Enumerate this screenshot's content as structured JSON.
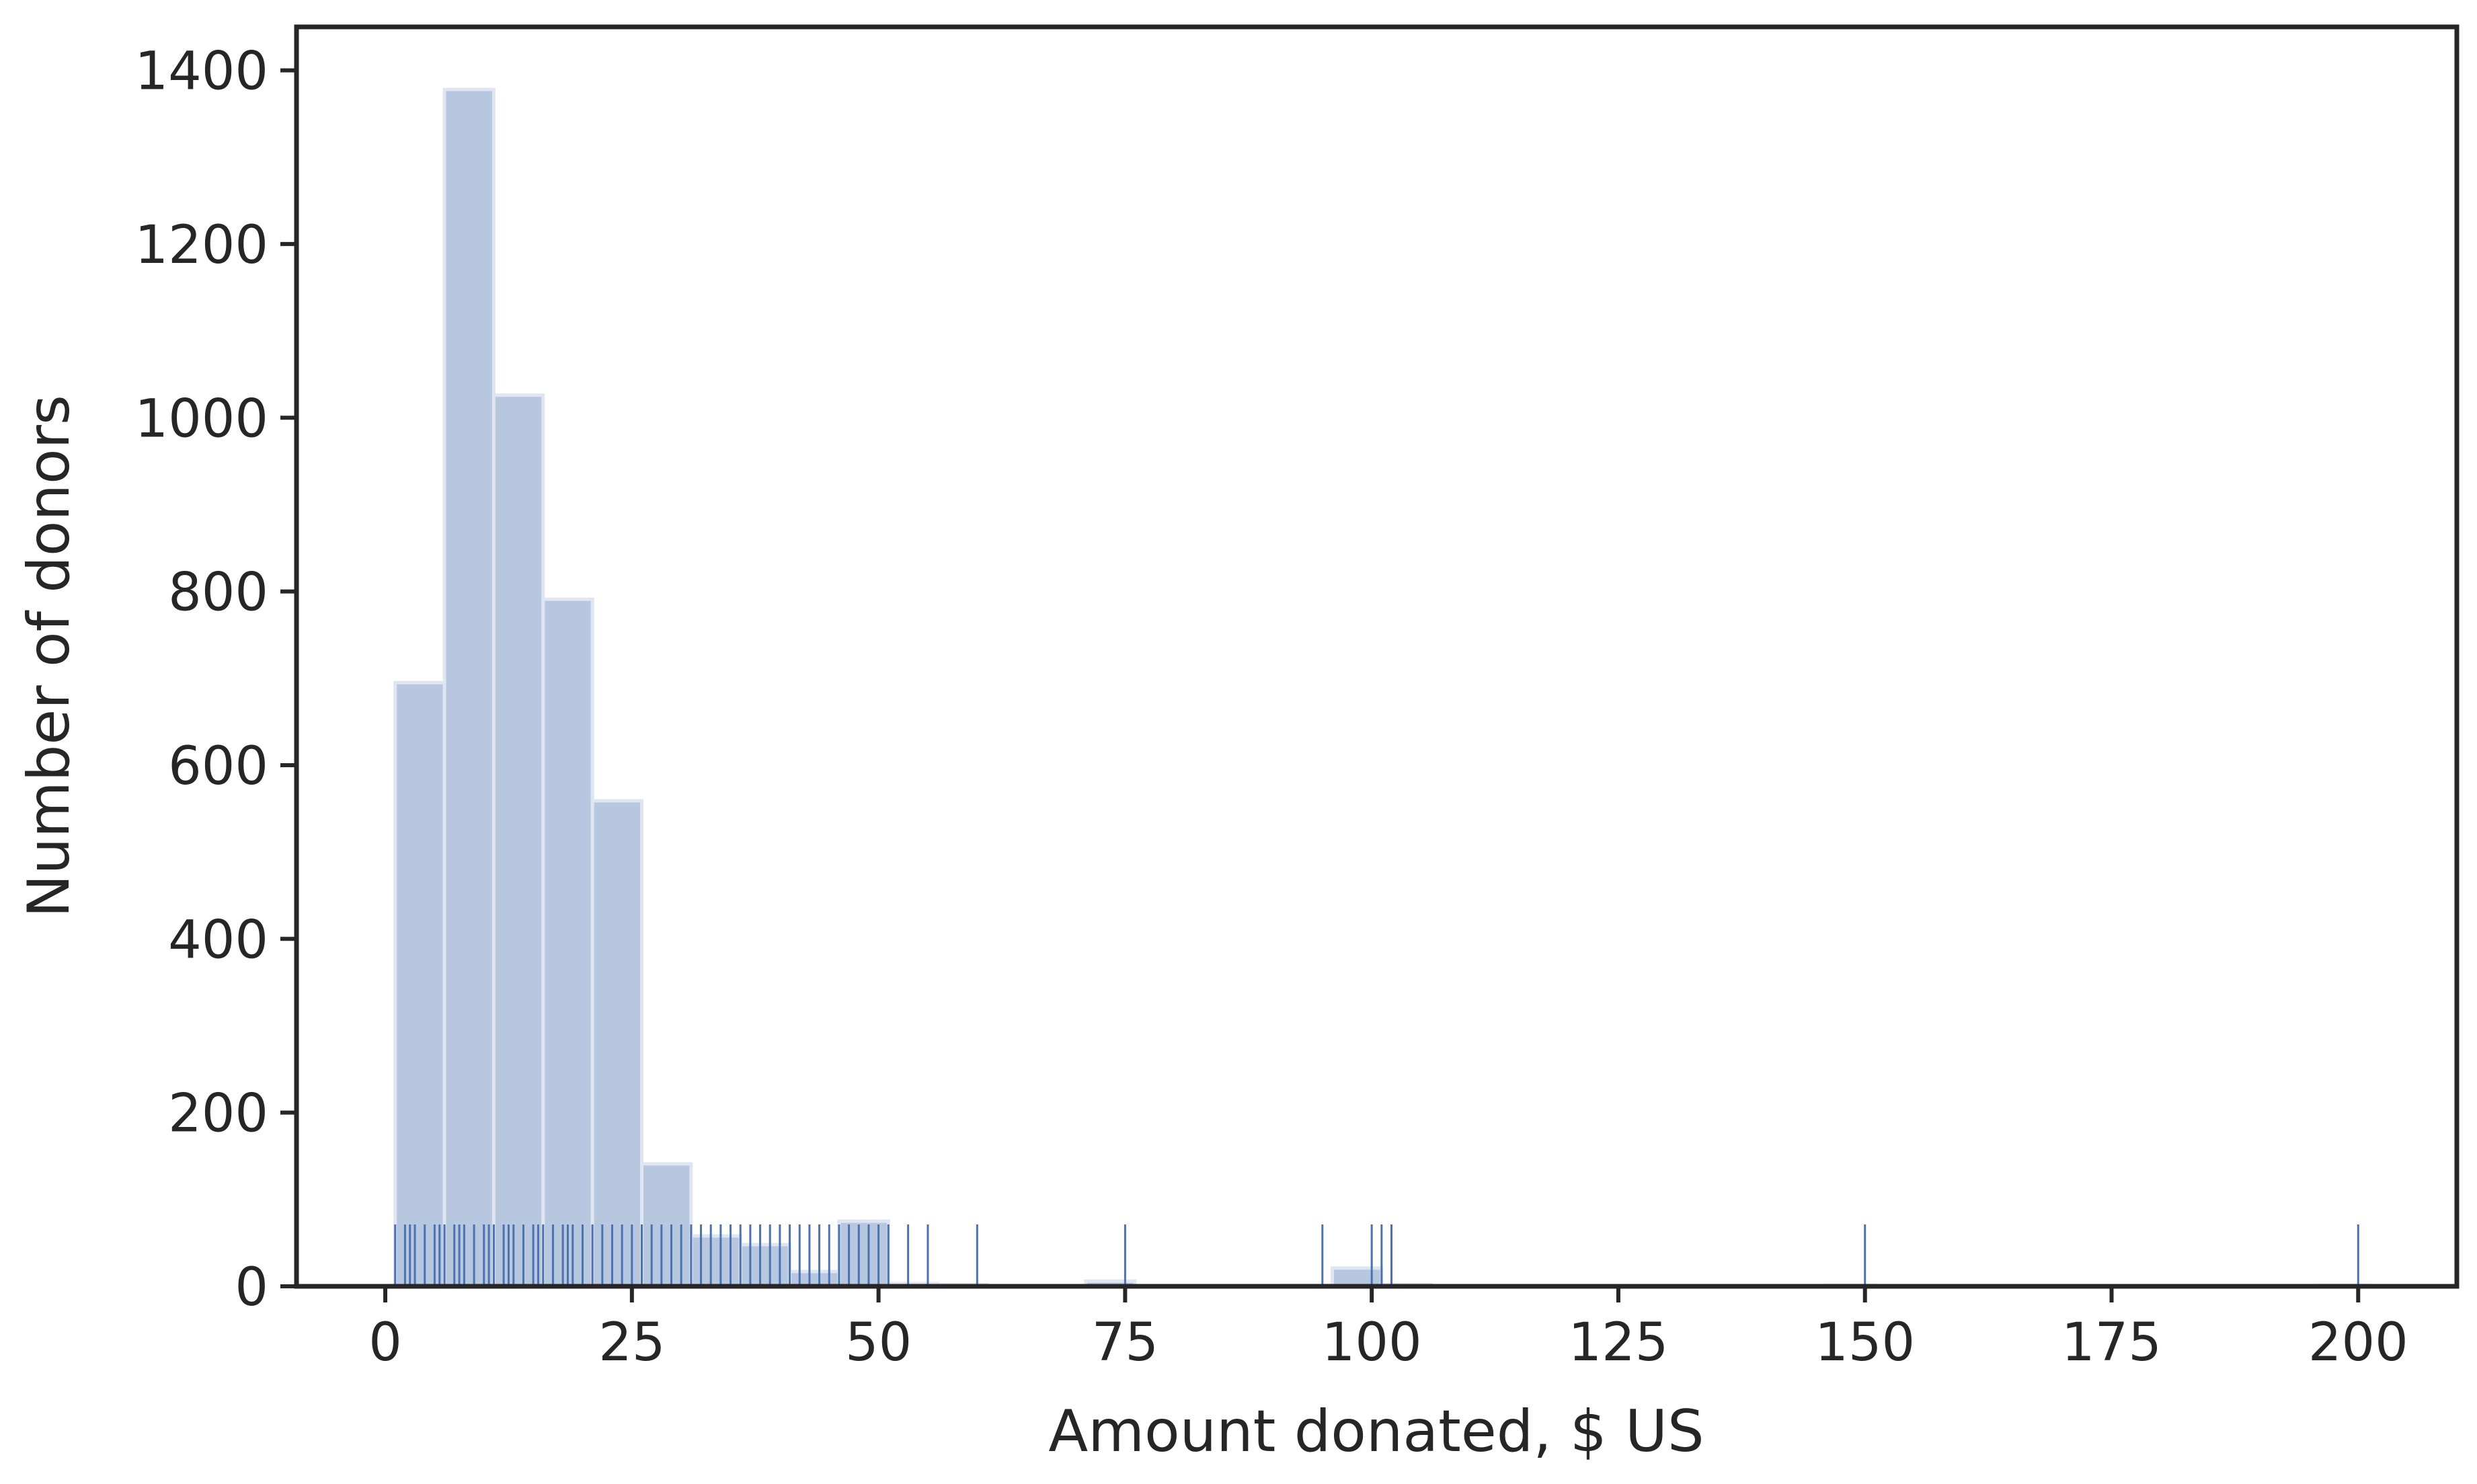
{
  "chart_data": {
    "type": "bar",
    "subtype": "histogram-with-rug",
    "title": "",
    "xlabel": "Amount donated, $ US",
    "ylabel": "Number of donors",
    "xlim": [
      -9,
      210
    ],
    "ylim": [
      0,
      1450
    ],
    "xticks": [
      0,
      25,
      50,
      75,
      100,
      125,
      150,
      175,
      200
    ],
    "yticks": [
      0,
      200,
      400,
      600,
      800,
      1000,
      1200,
      1400
    ],
    "grid": false,
    "legend": "none",
    "bins": [
      {
        "x0": 1,
        "x1": 6,
        "count": 695
      },
      {
        "x0": 6,
        "x1": 11,
        "count": 1378
      },
      {
        "x0": 11,
        "x1": 16,
        "count": 1026
      },
      {
        "x0": 16,
        "x1": 21,
        "count": 791
      },
      {
        "x0": 21,
        "x1": 26,
        "count": 559
      },
      {
        "x0": 26,
        "x1": 31,
        "count": 141
      },
      {
        "x0": 31,
        "x1": 36,
        "count": 58
      },
      {
        "x0": 36,
        "x1": 41,
        "count": 48
      },
      {
        "x0": 41,
        "x1": 46,
        "count": 17
      },
      {
        "x0": 46,
        "x1": 51,
        "count": 75
      },
      {
        "x0": 51,
        "x1": 56,
        "count": 3
      },
      {
        "x0": 56,
        "x1": 61,
        "count": 2
      },
      {
        "x0": 61,
        "x1": 66,
        "count": 0
      },
      {
        "x0": 66,
        "x1": 71,
        "count": 0
      },
      {
        "x0": 71,
        "x1": 76,
        "count": 6
      },
      {
        "x0": 76,
        "x1": 81,
        "count": 0
      },
      {
        "x0": 81,
        "x1": 86,
        "count": 0
      },
      {
        "x0": 86,
        "x1": 91,
        "count": 0
      },
      {
        "x0": 91,
        "x1": 96,
        "count": 1
      },
      {
        "x0": 96,
        "x1": 101,
        "count": 21
      },
      {
        "x0": 101,
        "x1": 106,
        "count": 2
      },
      {
        "x0": 146,
        "x1": 151,
        "count": 1
      },
      {
        "x0": 196,
        "x1": 201,
        "count": 1
      }
    ],
    "rug": [
      1,
      2,
      2.5,
      3,
      4,
      5,
      5.5,
      6,
      7,
      7.5,
      8,
      9,
      10,
      10.5,
      11,
      12,
      12.5,
      13,
      14,
      15,
      15.5,
      16,
      17,
      18,
      18.5,
      19,
      20,
      21,
      22,
      23,
      24,
      25,
      26,
      27,
      28,
      29,
      30,
      31,
      32,
      33,
      34,
      35,
      36,
      37,
      38,
      39,
      40,
      41,
      42,
      43,
      44,
      45,
      46,
      47,
      48,
      49,
      50,
      51,
      53,
      55,
      60,
      75,
      95,
      100,
      101,
      102,
      150,
      200
    ],
    "colors": {
      "bar_fill": "#b7c7e0",
      "bar_edge": "#dfe6f1",
      "rug": "#4c72b0",
      "axis": "#262626"
    }
  }
}
